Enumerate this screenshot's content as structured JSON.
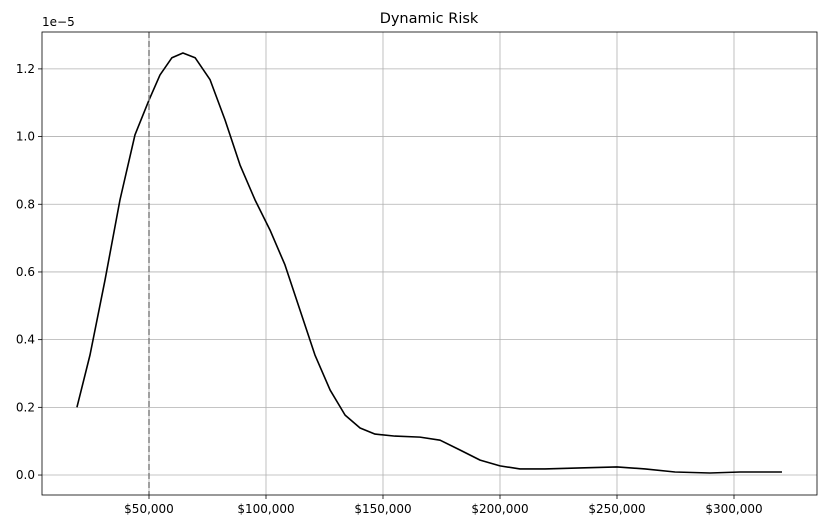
{
  "chart_data": {
    "type": "line",
    "title": "Dynamic Risk",
    "y_offset_label": "1e−5",
    "x": [
      19200,
      24800,
      31200,
      37600,
      44000,
      50000,
      54700,
      59800,
      64500,
      69700,
      76100,
      82500,
      88900,
      95300,
      101700,
      108100,
      114500,
      120900,
      127400,
      133800,
      140200,
      146600,
      155100,
      165800,
      174400,
      182900,
      191500,
      200000,
      208500,
      219200,
      234200,
      250000,
      262000,
      274800,
      289700,
      302600,
      320500
    ],
    "values": [
      0.2,
      0.355,
      0.576,
      0.813,
      1.005,
      1.108,
      1.182,
      1.233,
      1.247,
      1.233,
      1.168,
      1.049,
      0.916,
      0.813,
      0.724,
      0.621,
      0.488,
      0.355,
      0.251,
      0.177,
      0.139,
      0.121,
      0.115,
      0.112,
      0.103,
      0.074,
      0.044,
      0.027,
      0.018,
      0.018,
      0.021,
      0.024,
      0.018,
      0.009,
      0.006,
      0.009,
      0.009
    ],
    "color": "#000000",
    "xlim": [
      4274,
      335470
    ],
    "ylim": [
      -0.059,
      1.309
    ],
    "xticks": [
      {
        "value": 50000,
        "label": "$50,000"
      },
      {
        "value": 100000,
        "label": "$100,000"
      },
      {
        "value": 150000,
        "label": "$150,000"
      },
      {
        "value": 200000,
        "label": "$200,000"
      },
      {
        "value": 250000,
        "label": "$250,000"
      },
      {
        "value": 300000,
        "label": "$300,000"
      }
    ],
    "yticks": [
      {
        "value": 0,
        "label": "0.0"
      },
      0.2,
      0.4,
      0.6,
      0.8,
      {
        "value": 1,
        "label": "1.0"
      },
      1.2
    ],
    "grid": true,
    "reference_line": {
      "x": 50000,
      "color": "#808080",
      "style": "dashed"
    }
  }
}
